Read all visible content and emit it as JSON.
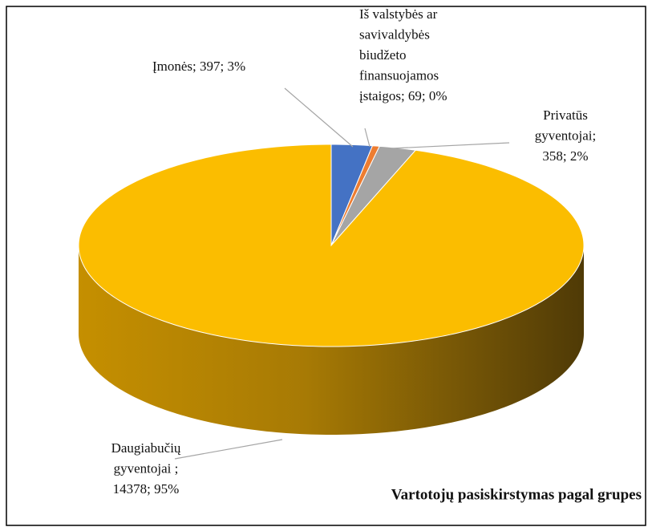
{
  "chart_data": {
    "type": "pie3d",
    "title": "Vartotojų pasiskirstymas  pagal grupes",
    "values": [
      397,
      69,
      358,
      14378
    ],
    "value_labels": [
      [
        "Įmonės; 397; 3%"
      ],
      [
        "Iš valstybės ar",
        "savivaldybės",
        "biudžeto",
        "finansuojamos",
        "įstaigos; 69; 0%"
      ],
      [
        "Privatūs",
        "gyventojai;",
        "358; 2%"
      ],
      [
        "Daugiabučių",
        "gyventojai  ;",
        "14378; 95%"
      ]
    ],
    "colors": [
      "#4472c4",
      "#ed7d31",
      "#a5a5a5",
      "#fbbd00"
    ]
  }
}
